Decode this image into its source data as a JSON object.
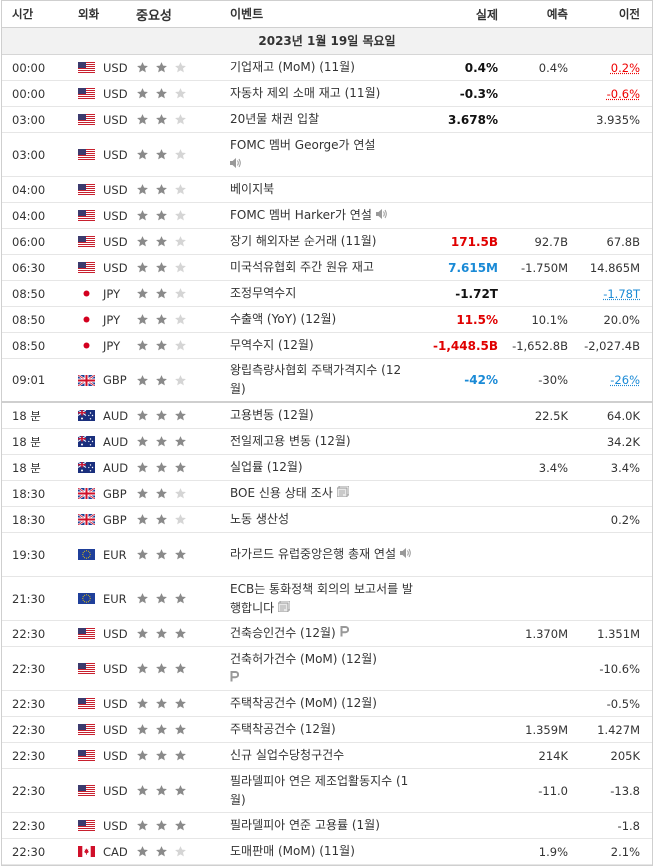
{
  "header": {
    "time": "시간",
    "currency": "외화",
    "importance": "중요성",
    "event": "이벤트",
    "actual": "실제",
    "forecast": "예측",
    "previous": "이전"
  },
  "date_label": "2023년 1월 19일 목요일",
  "colors": {
    "up": "#e00000",
    "down": "#1a8ad6",
    "star_on": "#8a8a8a",
    "star_off": "#d5d5d5"
  },
  "rows": [
    {
      "time": "00:00",
      "flag": "US",
      "cur": "USD",
      "stars": 2,
      "event": "기업재고 (MoM) (11월)",
      "actual": "0.4%",
      "actual_color": "black",
      "forecast": "0.4%",
      "previous": "0.2%",
      "prev_color": "red",
      "h": 26
    },
    {
      "time": "00:00",
      "flag": "US",
      "cur": "USD",
      "stars": 2,
      "event": "자동차 제외 소매 재고 (11월)",
      "actual": "-0.3%",
      "actual_color": "black",
      "forecast": "",
      "previous": "-0.6%",
      "prev_color": "red",
      "h": 26
    },
    {
      "time": "03:00",
      "flag": "US",
      "cur": "USD",
      "stars": 2,
      "event": "20년물 채권 입찰",
      "actual": "3.678%",
      "actual_color": "black",
      "forecast": "",
      "previous": "3.935%",
      "prev_color": "",
      "h": 26
    },
    {
      "time": "03:00",
      "flag": "US",
      "cur": "USD",
      "stars": 2,
      "event": "FOMC 멤버 George가 연설",
      "icon": "speaker-icon",
      "icon_break": true,
      "actual": "",
      "forecast": "",
      "previous": "",
      "h": 44
    },
    {
      "time": "04:00",
      "flag": "US",
      "cur": "USD",
      "stars": 2,
      "event": "베이지북",
      "actual": "",
      "forecast": "",
      "previous": "",
      "h": 26
    },
    {
      "time": "04:00",
      "flag": "US",
      "cur": "USD",
      "stars": 2,
      "event": "FOMC 멤버 Harker가 연설",
      "icon": "speaker-icon",
      "actual": "",
      "forecast": "",
      "previous": "",
      "h": 26
    },
    {
      "time": "06:00",
      "flag": "US",
      "cur": "USD",
      "stars": 2,
      "event": "장기 해외자본 순거래 (11월)",
      "actual": "171.5B",
      "actual_color": "red",
      "forecast": "92.7B",
      "previous": "67.8B",
      "prev_color": "",
      "h": 26
    },
    {
      "time": "06:30",
      "flag": "US",
      "cur": "USD",
      "stars": 2,
      "event": "미국석유협회 주간 원유 재고",
      "actual": "7.615M",
      "actual_color": "blue",
      "forecast": "-1.750M",
      "previous": "14.865M",
      "prev_color": "",
      "h": 26
    },
    {
      "time": "08:50",
      "flag": "JP",
      "cur": "JPY",
      "stars": 2,
      "event": "조정무역수지",
      "actual": "-1.72T",
      "actual_color": "black",
      "forecast": "",
      "previous": "-1.78T",
      "prev_color": "blue",
      "h": 26
    },
    {
      "time": "08:50",
      "flag": "JP",
      "cur": "JPY",
      "stars": 2,
      "event": "수출액 (YoY) (12월)",
      "actual": "11.5%",
      "actual_color": "red",
      "forecast": "10.1%",
      "previous": "20.0%",
      "prev_color": "",
      "h": 26
    },
    {
      "time": "08:50",
      "flag": "JP",
      "cur": "JPY",
      "stars": 2,
      "event": "무역수지 (12월)",
      "actual": "-1,448.5B",
      "actual_color": "red",
      "forecast": "-1,652.8B",
      "previous": "-2,027.4B",
      "prev_color": "",
      "h": 26
    },
    {
      "time": "09:01",
      "flag": "GB",
      "cur": "GBP",
      "stars": 2,
      "event": "왕립측량사협회 주택가격지수 (12월)",
      "actual": "-42%",
      "actual_color": "blue",
      "forecast": "-30%",
      "previous": "-26%",
      "prev_color": "blue",
      "h": 44,
      "sep": true
    },
    {
      "time": "18 분",
      "flag": "AU",
      "cur": "AUD",
      "stars": 3,
      "event": "고용변동 (12월)",
      "actual": "",
      "forecast": "22.5K",
      "previous": "64.0K",
      "prev_color": "",
      "h": 26
    },
    {
      "time": "18 분",
      "flag": "AU",
      "cur": "AUD",
      "stars": 3,
      "event": "전일제고용 변동 (12월)",
      "actual": "",
      "forecast": "",
      "previous": "34.2K",
      "prev_color": "",
      "h": 26
    },
    {
      "time": "18 분",
      "flag": "AU",
      "cur": "AUD",
      "stars": 3,
      "event": "실업률 (12월)",
      "actual": "",
      "forecast": "3.4%",
      "previous": "3.4%",
      "prev_color": "",
      "h": 26
    },
    {
      "time": "18:30",
      "flag": "GB",
      "cur": "GBP",
      "stars": 2,
      "event": "BOE 신용 상태 조사",
      "icon": "report-icon",
      "actual": "",
      "forecast": "",
      "previous": "",
      "h": 26
    },
    {
      "time": "18:30",
      "flag": "GB",
      "cur": "GBP",
      "stars": 2,
      "event": "노동 생산성",
      "actual": "",
      "forecast": "",
      "previous": "0.2%",
      "prev_color": "",
      "h": 26
    },
    {
      "time": "19:30",
      "flag": "EU",
      "cur": "EUR",
      "stars": 3,
      "event": "라가르드 유럽중앙은행 총재 연설",
      "icon": "speaker-icon",
      "actual": "",
      "forecast": "",
      "previous": "",
      "h": 44
    },
    {
      "time": "21:30",
      "flag": "EU",
      "cur": "EUR",
      "stars": 3,
      "event": "ECB는 통화정책 회의의 보고서를 발행합니다",
      "icon": "report-icon",
      "actual": "",
      "forecast": "",
      "previous": "",
      "h": 44
    },
    {
      "time": "22:30",
      "flag": "US",
      "cur": "USD",
      "stars": 3,
      "event": "건축승인건수 (12월)",
      "icon": "preliminary-icon",
      "actual": "",
      "forecast": "1.370M",
      "previous": "1.351M",
      "prev_color": "",
      "h": 26
    },
    {
      "time": "22:30",
      "flag": "US",
      "cur": "USD",
      "stars": 3,
      "event": "건축허가건수 (MoM) (12월)",
      "icon": "preliminary-icon",
      "icon_break": true,
      "actual": "",
      "forecast": "",
      "previous": "-10.6%",
      "prev_color": "",
      "h": 44
    },
    {
      "time": "22:30",
      "flag": "US",
      "cur": "USD",
      "stars": 3,
      "event": "주택착공건수 (MoM) (12월)",
      "actual": "",
      "forecast": "",
      "previous": "-0.5%",
      "prev_color": "",
      "h": 26
    },
    {
      "time": "22:30",
      "flag": "US",
      "cur": "USD",
      "stars": 3,
      "event": "주택착공건수 (12월)",
      "actual": "",
      "forecast": "1.359M",
      "previous": "1.427M",
      "prev_color": "",
      "h": 26
    },
    {
      "time": "22:30",
      "flag": "US",
      "cur": "USD",
      "stars": 3,
      "event": "신규 실업수당청구건수",
      "actual": "",
      "forecast": "214K",
      "previous": "205K",
      "prev_color": "",
      "h": 26
    },
    {
      "time": "22:30",
      "flag": "US",
      "cur": "USD",
      "stars": 3,
      "event": "필라델피아 연은 제조업활동지수 (1월)",
      "actual": "",
      "forecast": "-11.0",
      "previous": "-13.8",
      "prev_color": "",
      "h": 44
    },
    {
      "time": "22:30",
      "flag": "US",
      "cur": "USD",
      "stars": 3,
      "event": "필라델피아 연준 고용률 (1월)",
      "actual": "",
      "forecast": "",
      "previous": "-1.8",
      "prev_color": "",
      "h": 26
    },
    {
      "time": "22:30",
      "flag": "CA",
      "cur": "CAD",
      "stars": 2,
      "event": "도매판매 (MoM) (11월)",
      "actual": "",
      "forecast": "1.9%",
      "previous": "2.1%",
      "prev_color": "",
      "h": 26
    }
  ]
}
